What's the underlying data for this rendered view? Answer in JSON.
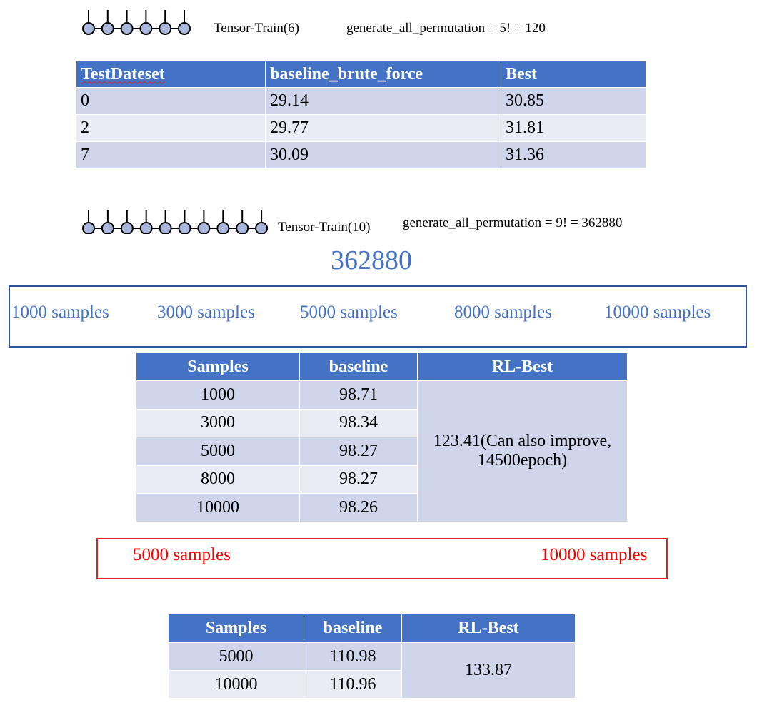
{
  "section1": {
    "diagram_label": "Tensor-Train(6)",
    "permutation_text": "generate_all_permutation = 5! = 120",
    "table": {
      "headers": [
        "TestDateset",
        "baseline_brute_force",
        "Best"
      ],
      "rows": [
        [
          "0",
          "29.14",
          "30.85"
        ],
        [
          "2",
          "29.77",
          "31.81"
        ],
        [
          "7",
          "30.09",
          "31.36"
        ]
      ]
    }
  },
  "section2": {
    "diagram_label": "Tensor-Train(10)",
    "permutation_text": "generate_all_permutation = 9! = 362880",
    "big_number": "362880",
    "sample_options": [
      "1000 samples",
      "3000 samples",
      "5000 samples",
      "8000 samples",
      "10000 samples"
    ],
    "table": {
      "headers": [
        "Samples",
        "baseline",
        "RL-Best"
      ],
      "rows": [
        [
          "1000",
          "98.71"
        ],
        [
          "3000",
          "98.34"
        ],
        [
          "5000",
          "98.27"
        ],
        [
          "8000",
          "98.27"
        ],
        [
          "10000",
          "98.26"
        ]
      ],
      "rl_best": "123.41(Can also improve, 14500epoch)"
    }
  },
  "section3": {
    "sample_options": [
      "5000 samples",
      "10000 samples"
    ],
    "table": {
      "headers": [
        "Samples",
        "baseline",
        "RL-Best"
      ],
      "rows": [
        [
          "5000",
          "110.98"
        ],
        [
          "10000",
          "110.96"
        ]
      ],
      "rl_best": "133.87"
    }
  },
  "colors": {
    "header_blue": "#4472c4",
    "row_dark": "#cfd5ea",
    "row_light": "#e9ebf5",
    "accent_red": "#ff0000",
    "node_fill": "#a9b7dc"
  }
}
